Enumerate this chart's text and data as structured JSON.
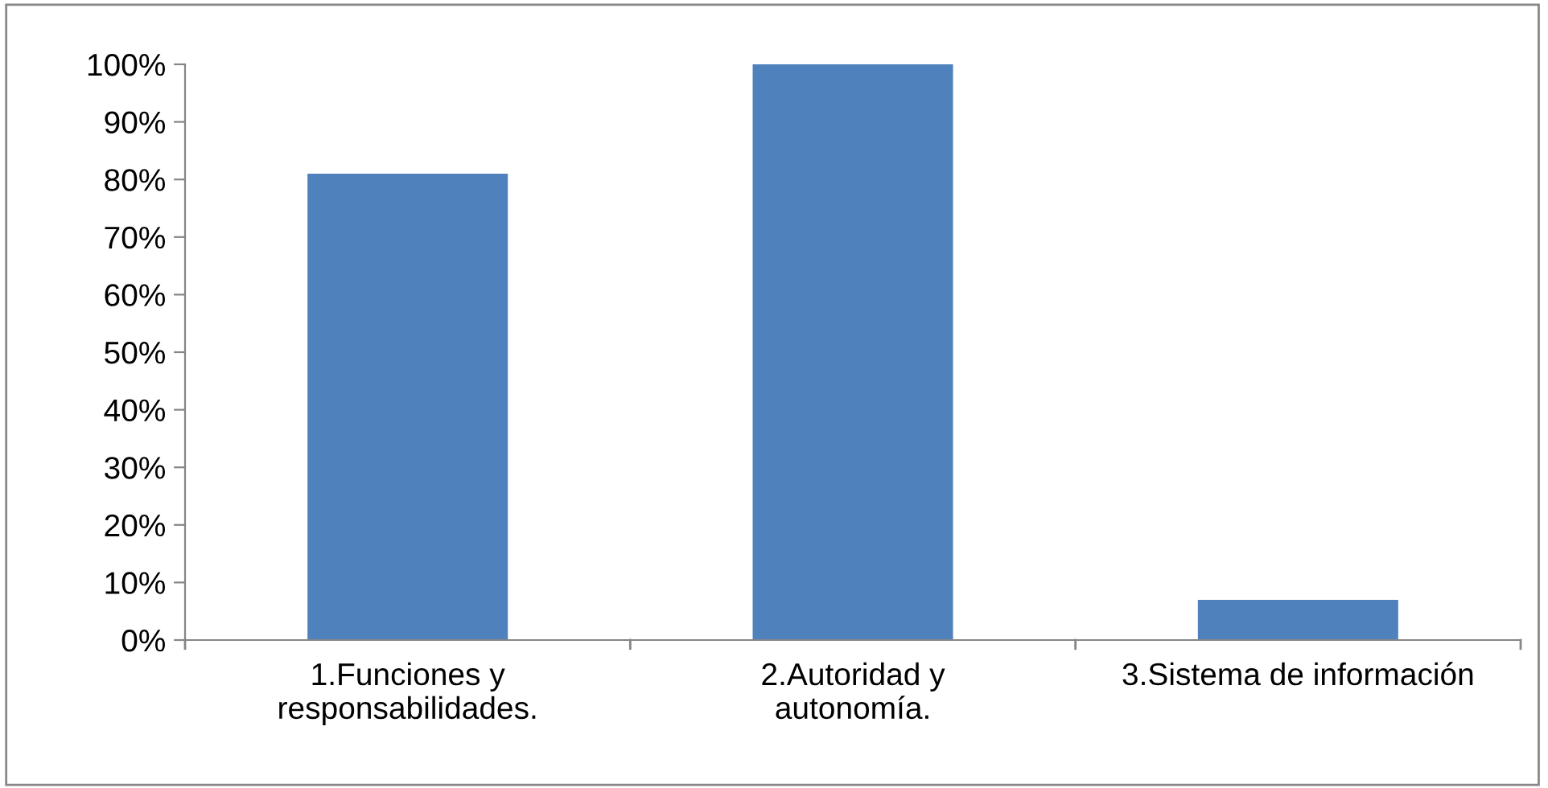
{
  "chart_data": {
    "type": "bar",
    "categories": [
      "1.Funciones y\nresponsabilidades.",
      "2.Autoridad y\nautonomía.",
      "3.Sistema de información"
    ],
    "values": [
      81,
      100,
      7
    ],
    "color": "#4f81bd",
    "ylim": [
      0,
      100
    ],
    "yticks": [
      {
        "value": 0,
        "label": "0%"
      },
      {
        "value": 10,
        "label": "10%"
      },
      {
        "value": 20,
        "label": "20%"
      },
      {
        "value": 30,
        "label": "30%"
      },
      {
        "value": 40,
        "label": "40%"
      },
      {
        "value": 50,
        "label": "50%"
      },
      {
        "value": 60,
        "label": "60%"
      },
      {
        "value": 70,
        "label": "70%"
      },
      {
        "value": 80,
        "label": "80%"
      },
      {
        "value": 90,
        "label": "90%"
      },
      {
        "value": 100,
        "label": "100%"
      }
    ],
    "grid": false
  }
}
